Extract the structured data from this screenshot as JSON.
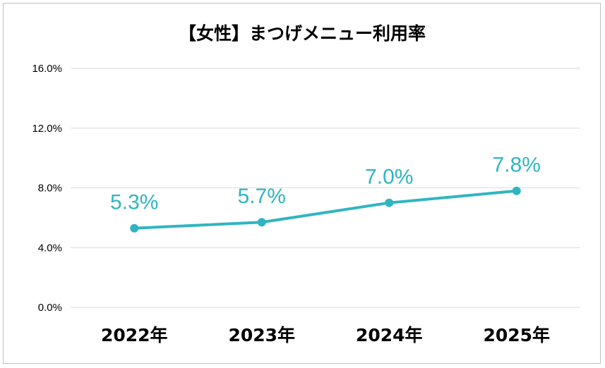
{
  "chart_data": {
    "type": "line",
    "title": "【女性】まつげメニュー利用率",
    "categories": [
      "2022年",
      "2023年",
      "2024年",
      "2025年"
    ],
    "series": [
      {
        "values": [
          5.3,
          5.7,
          7.0,
          7.8
        ],
        "color": "#2fb5c1"
      }
    ],
    "data_labels": [
      "5.3%",
      "5.7%",
      "7.0%",
      "7.8%"
    ],
    "yticks": [
      0,
      4,
      8,
      12,
      16
    ],
    "ytick_labels": [
      "0.0%",
      "4.0%",
      "8.0%",
      "12.0%",
      "16.0%"
    ],
    "ylim": [
      0,
      16
    ],
    "grid": true,
    "legend": "none",
    "xlabel": "",
    "ylabel": ""
  }
}
